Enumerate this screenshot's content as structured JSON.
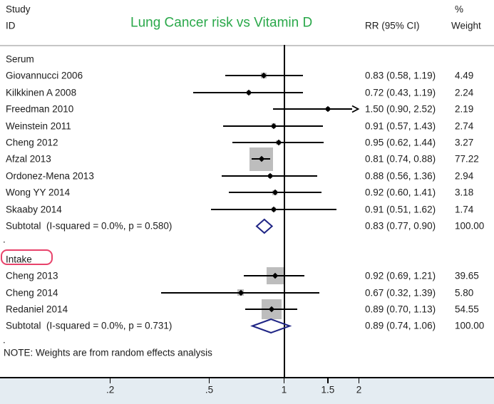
{
  "header": {
    "col_study_line1": "Study",
    "col_study_line2": "ID",
    "title": "Lung Cancer risk vs Vitamin D",
    "col_rr": "RR (95% CI)",
    "col_weight_line1": "%",
    "col_weight_line2": "Weight"
  },
  "note": "NOTE: Weights are from random effects analysis",
  "colors": {
    "title_green": "#2aa84a",
    "highlight_red": "#e8436b",
    "diamond_navy": "#1f2585",
    "square_gray": "#bdbdbd",
    "strip_blue": "#e4ecf2"
  },
  "chart_data": {
    "type": "forest",
    "scale": "log",
    "null_value": 1,
    "xlim": [
      0.13,
      2.6
    ],
    "x_ticks": [
      {
        "value": 0.2,
        "label": ".2"
      },
      {
        "value": 0.5,
        "label": ".5"
      },
      {
        "value": 1,
        "label": "1"
      },
      {
        "value": 1.5,
        "label": "1.5"
      },
      {
        "value": 2,
        "label": "2"
      }
    ],
    "groups": [
      {
        "name": "Serum",
        "highlighted": false,
        "studies": [
          {
            "id": "Giovannucci 2006",
            "rr": 0.83,
            "ci_low": 0.58,
            "ci_high": 1.19,
            "rr_text": "0.83 (0.58, 1.19)",
            "weight": 4.49,
            "weight_text": "4.49",
            "arrow_right": false
          },
          {
            "id": "Kilkkinen A 2008",
            "rr": 0.72,
            "ci_low": 0.43,
            "ci_high": 1.19,
            "rr_text": "0.72 (0.43, 1.19)",
            "weight": 2.24,
            "weight_text": "2.24",
            "arrow_right": false
          },
          {
            "id": "Freedman 2010",
            "rr": 1.5,
            "ci_low": 0.9,
            "ci_high": 2.52,
            "rr_text": "1.50 (0.90, 2.52)",
            "weight": 2.19,
            "weight_text": "2.19",
            "arrow_right": true
          },
          {
            "id": "Weinstein 2011",
            "rr": 0.91,
            "ci_low": 0.57,
            "ci_high": 1.43,
            "rr_text": "0.91 (0.57, 1.43)",
            "weight": 2.74,
            "weight_text": "2.74",
            "arrow_right": false
          },
          {
            "id": "Cheng 2012",
            "rr": 0.95,
            "ci_low": 0.62,
            "ci_high": 1.44,
            "rr_text": "0.95 (0.62, 1.44)",
            "weight": 3.27,
            "weight_text": "3.27",
            "arrow_right": false
          },
          {
            "id": "Afzal 2013",
            "rr": 0.81,
            "ci_low": 0.74,
            "ci_high": 0.88,
            "rr_text": "0.81 (0.74, 0.88)",
            "weight": 77.22,
            "weight_text": "77.22",
            "arrow_right": false
          },
          {
            "id": "Ordonez-Mena 2013",
            "rr": 0.88,
            "ci_low": 0.56,
            "ci_high": 1.36,
            "rr_text": "0.88 (0.56, 1.36)",
            "weight": 2.94,
            "weight_text": "2.94",
            "arrow_right": false
          },
          {
            "id": "Wong YY 2014",
            "rr": 0.92,
            "ci_low": 0.6,
            "ci_high": 1.41,
            "rr_text": "0.92 (0.60, 1.41)",
            "weight": 3.18,
            "weight_text": "3.18",
            "arrow_right": false
          },
          {
            "id": "Skaaby 2014",
            "rr": 0.91,
            "ci_low": 0.51,
            "ci_high": 1.62,
            "rr_text": "0.91 (0.51, 1.62)",
            "weight": 1.74,
            "weight_text": "1.74",
            "arrow_right": false
          }
        ],
        "subtotal": {
          "label": "Subtotal  (I-squared = 0.0%, p = 0.580)",
          "rr": 0.83,
          "ci_low": 0.77,
          "ci_high": 0.9,
          "rr_text": "0.83 (0.77, 0.90)",
          "weight_text": "100.00"
        }
      },
      {
        "name": "Intake",
        "highlighted": true,
        "studies": [
          {
            "id": "Cheng 2013",
            "rr": 0.92,
            "ci_low": 0.69,
            "ci_high": 1.21,
            "rr_text": "0.92 (0.69, 1.21)",
            "weight": 39.65,
            "weight_text": "39.65",
            "arrow_right": false
          },
          {
            "id": "Cheng 2014",
            "rr": 0.67,
            "ci_low": 0.32,
            "ci_high": 1.39,
            "rr_text": "0.67 (0.32, 1.39)",
            "weight": 5.8,
            "weight_text": "5.80",
            "arrow_right": false
          },
          {
            "id": "Redaniel 2014",
            "rr": 0.89,
            "ci_low": 0.7,
            "ci_high": 1.13,
            "rr_text": "0.89 (0.70, 1.13)",
            "weight": 54.55,
            "weight_text": "54.55",
            "arrow_right": false
          }
        ],
        "subtotal": {
          "label": "Subtotal  (I-squared = 0.0%, p = 0.731)",
          "rr": 0.89,
          "ci_low": 0.74,
          "ci_high": 1.06,
          "rr_text": "0.89 (0.74, 1.06)",
          "weight_text": "100.00"
        }
      }
    ],
    "separator_dot": "."
  }
}
